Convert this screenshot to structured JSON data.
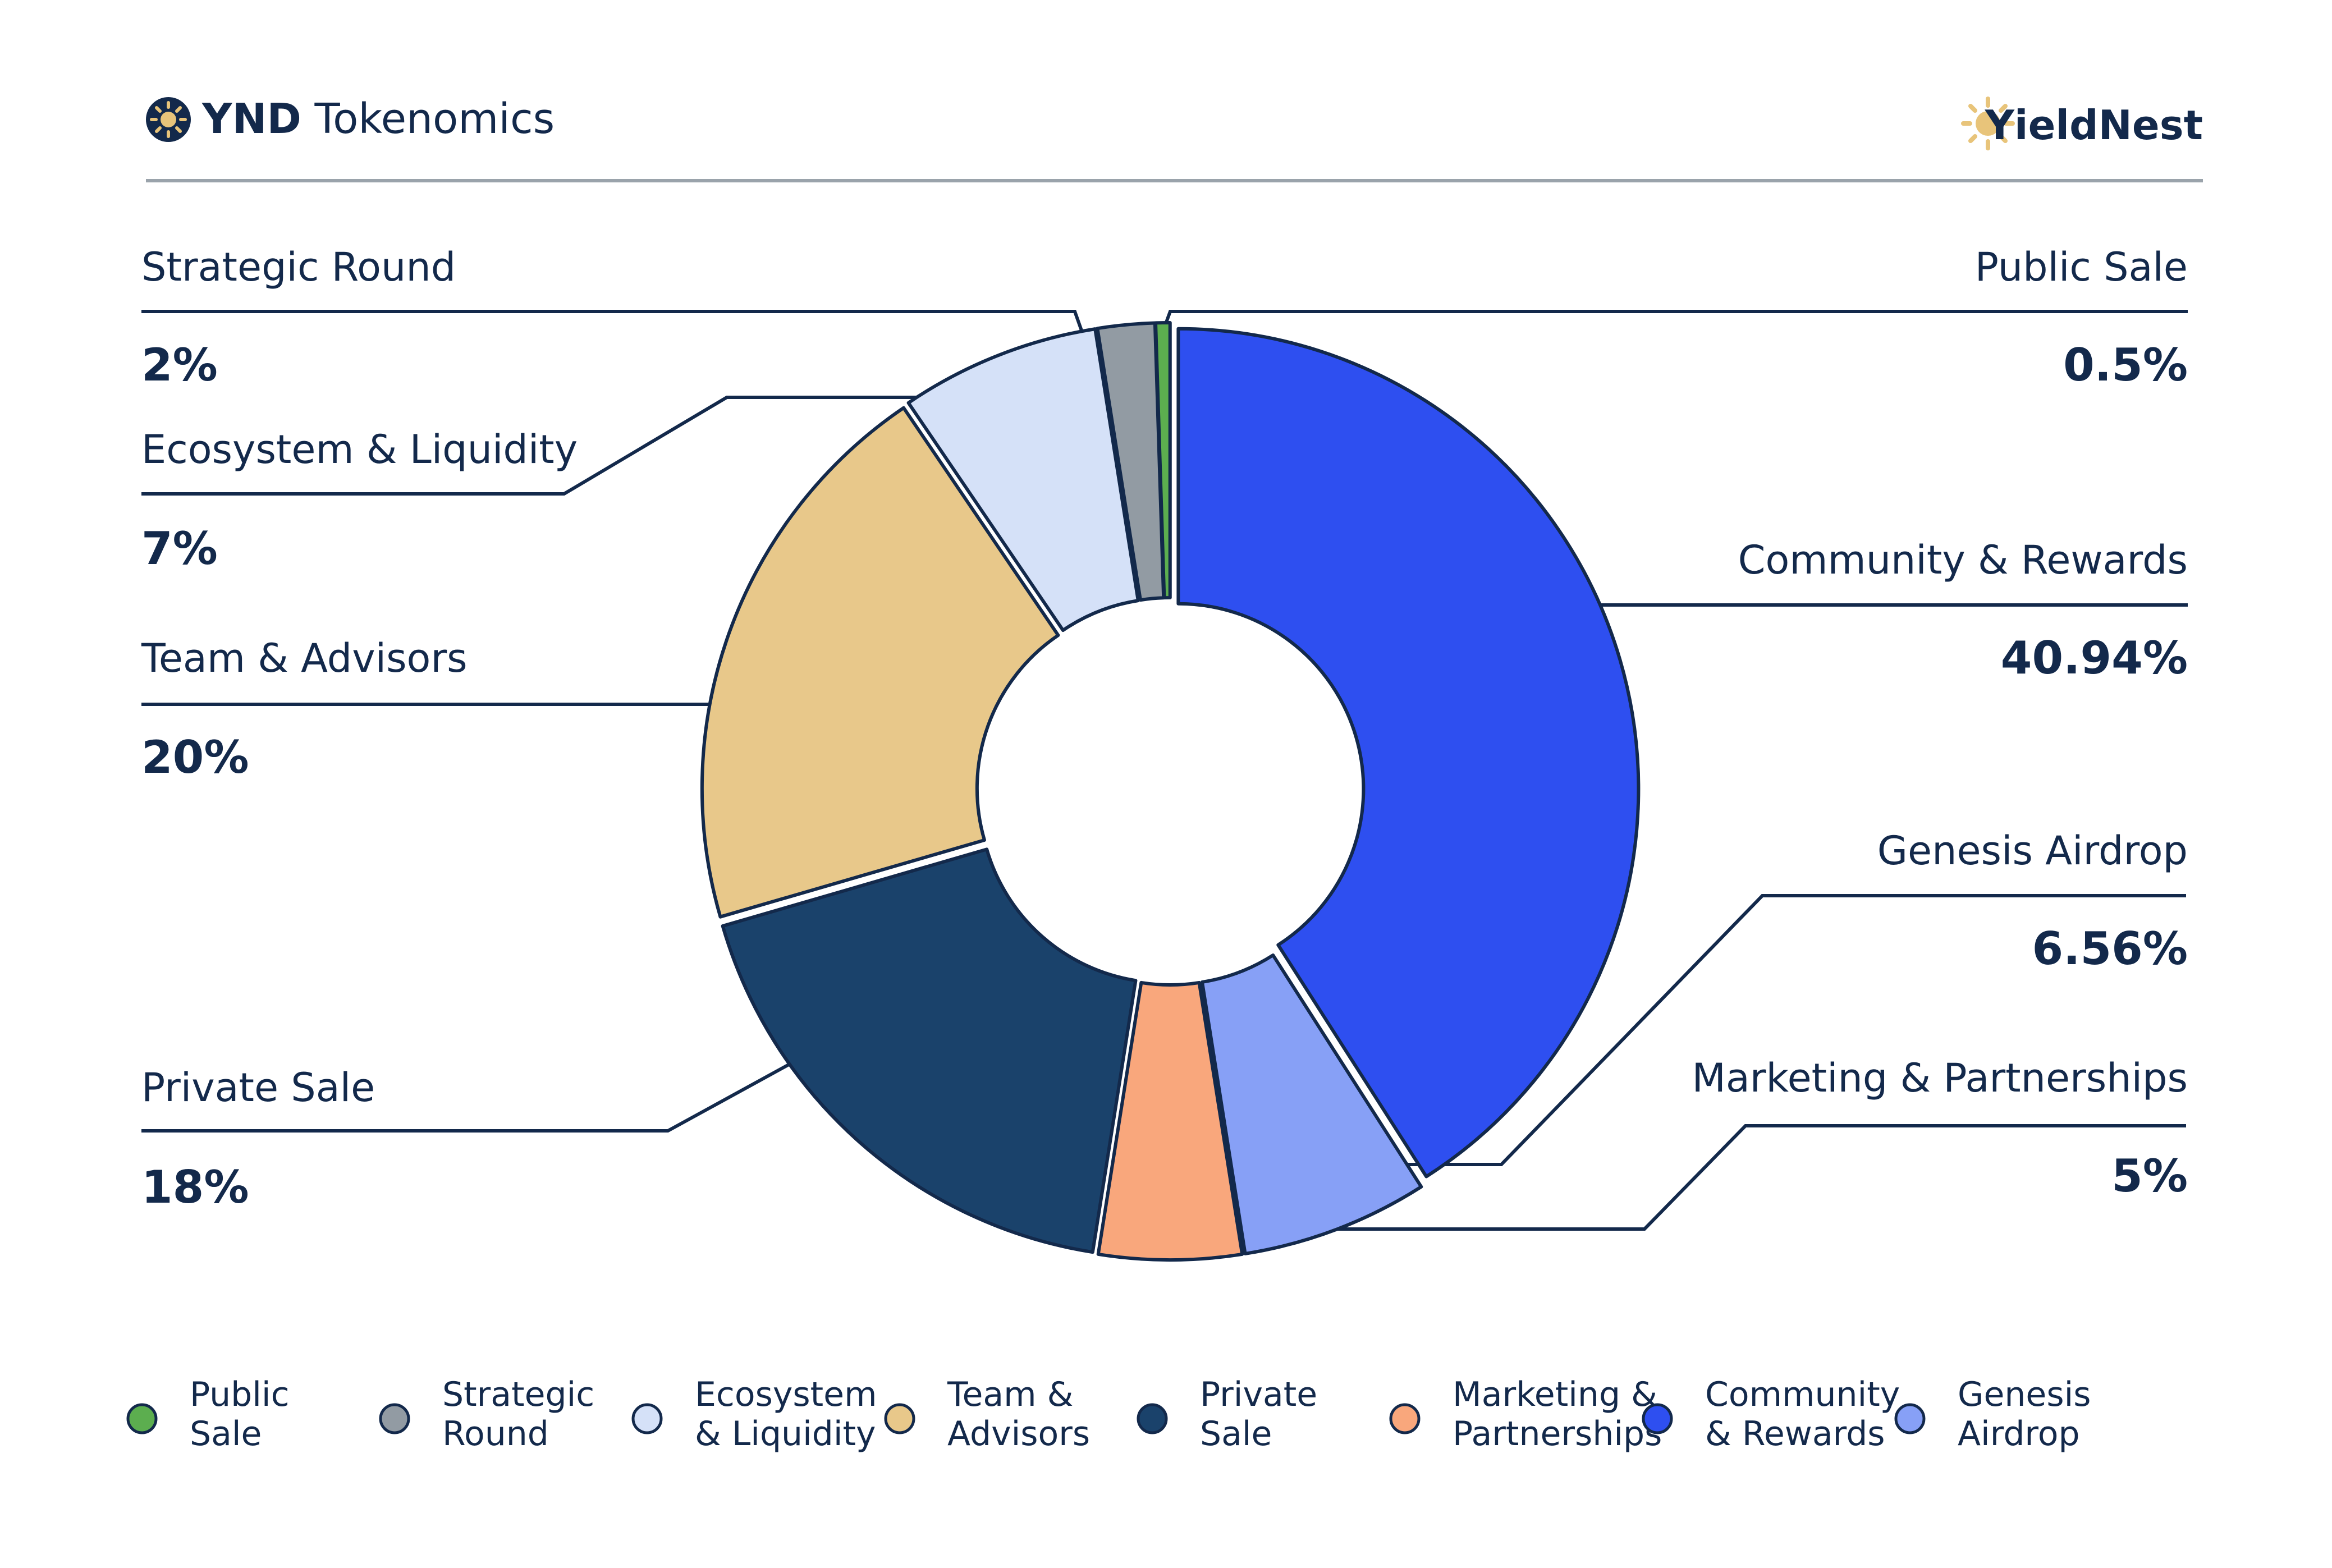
{
  "header": {
    "title_bold": "YND",
    "title_rest": " Tokenomics",
    "brand": "YieldNest"
  },
  "colors": {
    "ink": "#13294b",
    "rule": "#9aa3ab",
    "brand_sun": "#e8c47a"
  },
  "chart_data": {
    "type": "pie",
    "style": "donut",
    "legend_position": "bottom",
    "slices": [
      {
        "label": "Public Sale",
        "value_text": "0.5%",
        "value": 0.5,
        "color": "#5cae4f",
        "legend_lines": [
          "Public",
          "Sale"
        ]
      },
      {
        "label": "Community & Rewards",
        "value_text": "40.94%",
        "value": 40.94,
        "color": "#2e4ff0",
        "legend_lines": [
          "Community",
          "& Rewards"
        ]
      },
      {
        "label": "Genesis Airdrop",
        "value_text": "6.56%",
        "value": 6.56,
        "color": "#87a0f6",
        "legend_lines": [
          "Genesis",
          "Airdrop"
        ]
      },
      {
        "label": "Marketing & Partnerships",
        "value_text": "5%",
        "value": 5,
        "color": "#f9a77c",
        "legend_lines": [
          "Marketing &",
          "Partnerships"
        ]
      },
      {
        "label": "Private Sale",
        "value_text": "18%",
        "value": 18,
        "color": "#1a426b",
        "legend_lines": [
          "Private",
          "Sale"
        ]
      },
      {
        "label": "Team & Advisors",
        "value_text": "20%",
        "value": 20,
        "color": "#e8c88a",
        "legend_lines": [
          "Team &",
          "Advisors"
        ]
      },
      {
        "label": "Ecosystem & Liquidity",
        "value_text": "7%",
        "value": 7,
        "color": "#d5e1f8",
        "legend_lines": [
          "Ecosystem",
          "& Liquidity"
        ]
      },
      {
        "label": "Strategic Round",
        "value_text": "2%",
        "value": 2,
        "color": "#929ba3",
        "legend_lines": [
          "Strategic",
          "Round"
        ]
      }
    ],
    "legend_order": [
      "Public Sale",
      "Strategic Round",
      "Ecosystem & Liquidity",
      "Team & Advisors",
      "Private Sale",
      "Marketing & Partnerships",
      "Community & Rewards",
      "Genesis Airdrop"
    ]
  }
}
